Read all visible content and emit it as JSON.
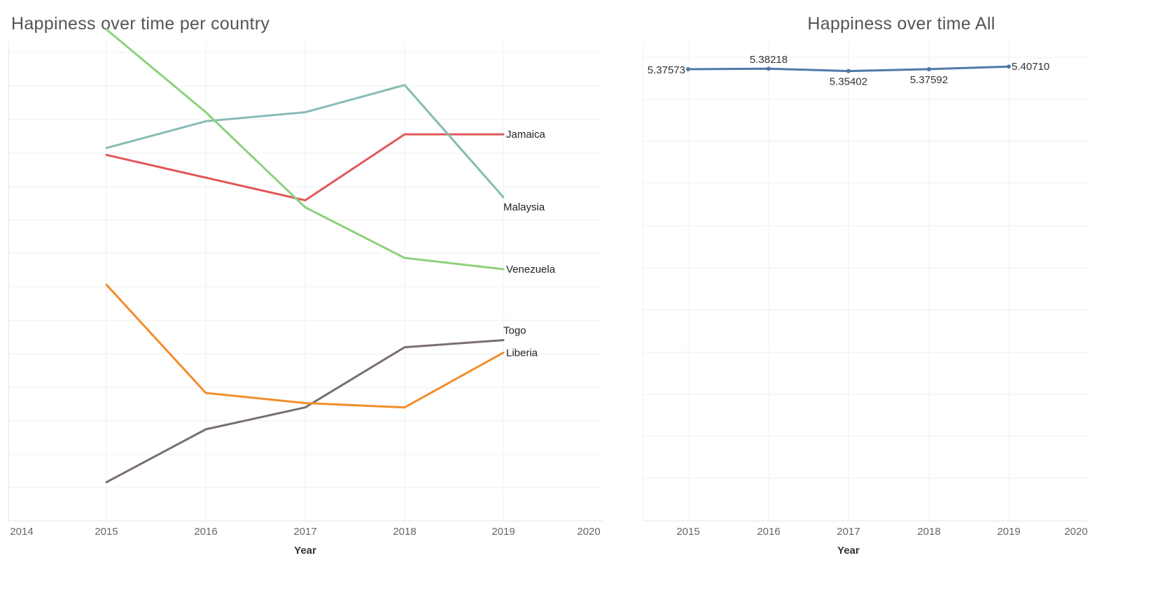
{
  "chart_data": [
    {
      "type": "line",
      "title": "Happiness over time per country",
      "xlabel": "Year",
      "ylabel": "",
      "x_ticks": [
        "2014",
        "2015",
        "2016",
        "2017",
        "2018",
        "2019",
        "2020"
      ],
      "xlim": [
        2014,
        2020
      ],
      "ylim": [
        2.5,
        6.7
      ],
      "grid": true,
      "x": [
        2015,
        2016,
        2017,
        2018,
        2019
      ],
      "series": [
        {
          "name": "Jamaica",
          "color": "#e15759",
          "values": [
            5.709,
            5.51,
            5.311,
            5.89,
            5.89
          ]
        },
        {
          "name": "Malaysia",
          "color": "#86bcb6",
          "values": [
            5.77,
            6.005,
            6.084,
            6.322,
            5.339
          ]
        },
        {
          "name": "Venezuela",
          "color": "#8cd17d",
          "values": [
            6.81,
            6.084,
            5.25,
            4.806,
            4.707
          ]
        },
        {
          "name": "Togo",
          "color": "#79706e",
          "values": [
            2.839,
            3.303,
            3.495,
            4.023,
            4.085
          ]
        },
        {
          "name": "Liberia",
          "color": "#f28e2b",
          "values": [
            4.571,
            3.622,
            3.533,
            3.495,
            3.975
          ]
        }
      ]
    },
    {
      "type": "line",
      "title": "Happiness over time All",
      "xlabel": "Year",
      "ylabel": "",
      "x_ticks": [
        "2014",
        "2015",
        "2016",
        "2017",
        "2018",
        "2019",
        "2020"
      ],
      "xlim": [
        2014,
        2020
      ],
      "ylim": [
        0,
        5.7
      ],
      "grid": true,
      "x": [
        2015,
        2016,
        2017,
        2018,
        2019
      ],
      "series": [
        {
          "name": "All",
          "color": "#4e79a7",
          "values": [
            5.37573,
            5.38218,
            5.35402,
            5.37592,
            5.4071
          ]
        }
      ],
      "data_labels": [
        "5.37573",
        "5.38218",
        "5.35402",
        "5.37592",
        "5.40710"
      ]
    }
  ]
}
